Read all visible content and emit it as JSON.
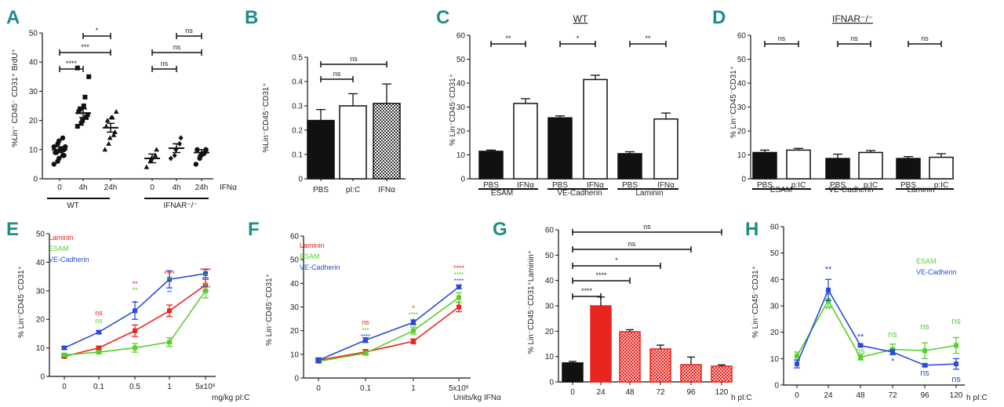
{
  "colors": {
    "label": "#1b8e86",
    "red": "#e8251f",
    "green": "#59cf2d",
    "blue": "#2a4bd7",
    "black": "#111111"
  },
  "panels": {
    "A": {
      "label": "A",
      "ylabel": "%Lin⁻ CD45⁻ CD31⁺ BrdU⁺",
      "yticks": [
        "0",
        "10",
        "20",
        "30",
        "40",
        "50"
      ],
      "xticks": [
        "0",
        "4h",
        "24h",
        "0",
        "4h",
        "24h"
      ],
      "xtitle": "IFNα",
      "groups": [
        "WT",
        "IFNAR⁻/⁻"
      ],
      "sig": [
        "*",
        "***",
        "****",
        "ns",
        "ns",
        "ns"
      ]
    },
    "B": {
      "label": "B",
      "ylabel": "%Lin⁻CD45⁻CD31⁺",
      "yticks": [
        "0",
        "0.1",
        "0.2",
        "0.3",
        "0.4",
        "0.5"
      ],
      "xticks": [
        "PBS",
        "pI:C",
        "IFNα"
      ],
      "sig": [
        "ns",
        "ns"
      ]
    },
    "C": {
      "label": "C",
      "title": "WT",
      "ylabel": "% Lin⁻CD45⁻CD31⁺",
      "yticks": [
        "0",
        "10",
        "20",
        "30",
        "40",
        "50",
        "60"
      ],
      "xticks": [
        "PBS",
        "IFNα",
        "PBS",
        "IFNα",
        "PBS",
        "IFNα"
      ],
      "groups": [
        "ESAM",
        "VE-Cadherin",
        "Laminin"
      ],
      "sig": [
        "**",
        "*",
        "**"
      ]
    },
    "D": {
      "label": "D",
      "title": "IFNAR⁻/⁻",
      "ylabel": "% Lin⁻CD45⁻CD31⁺",
      "yticks": [
        "0",
        "10",
        "20",
        "30",
        "40",
        "50",
        "60"
      ],
      "xticks": [
        "PBS",
        "p:IC",
        "PBS",
        "p:IC",
        "PBS",
        "p:IC"
      ],
      "groups": [
        "ESAM",
        "VE-Cadherin",
        "Laminin"
      ],
      "sig": [
        "ns",
        "ns",
        "ns"
      ]
    },
    "E": {
      "label": "E",
      "ylabel": "% Lin⁻CD45⁻CD31⁺",
      "yticks": [
        "0",
        "10",
        "20",
        "30",
        "40",
        "50"
      ],
      "xticks": [
        "0",
        "0.1",
        "0.5",
        "1",
        "5x10⁶"
      ],
      "xtitle": "mg/kg pI:C",
      "legend": [
        "Laminin",
        "ESAM",
        "VE-Cadherin"
      ],
      "sig_red": [
        "ns",
        "**",
        "****",
        "****"
      ],
      "sig_green": [
        "ns",
        "**",
        "**",
        "**"
      ],
      "sig_blue": [
        "**",
        "*",
        "**",
        "****"
      ]
    },
    "F": {
      "label": "F",
      "ylabel": "% Lin⁻CD45⁻CD31⁺",
      "yticks": [
        "0",
        "10",
        "20",
        "30",
        "40",
        "50",
        "60"
      ],
      "xticks": [
        "0",
        "0.1",
        "1",
        "5x10⁶"
      ],
      "xtitle": "Units/kg IFNα",
      "legend": [
        "Laminin",
        "ESAM",
        "VE-Cadherin"
      ],
      "sig_red": [
        "ns",
        "*",
        "****"
      ],
      "sig_green": [
        "***",
        "****",
        "****"
      ],
      "sig_blue": [
        "****",
        "*",
        "****"
      ]
    },
    "G": {
      "label": "G",
      "ylabel": "% Lin⁻CD45⁻CD31⁺Laminin⁺",
      "yticks": [
        "0",
        "10",
        "20",
        "30",
        "40",
        "50",
        "60"
      ],
      "xticks": [
        "0",
        "24",
        "48",
        "72",
        "96",
        "120"
      ],
      "xtitle": "h pI:C",
      "sig": [
        "ns",
        "ns",
        "*",
        "****",
        "****"
      ]
    },
    "H": {
      "label": "H",
      "ylabel": "% Lin⁻CD45⁻CD31⁺",
      "yticks": [
        "0",
        "10",
        "20",
        "30",
        "40",
        "50",
        "60"
      ],
      "xticks": [
        "0",
        "24",
        "48",
        "72",
        "96",
        "120"
      ],
      "xtitle": "h pI:C",
      "legend": [
        "ESAM",
        "VE-Cadherin"
      ],
      "sig_green": [
        "**",
        "ns",
        "ns",
        "ns",
        "ns"
      ],
      "sig_blue": [
        "**",
        "**",
        "*",
        "ns",
        "ns"
      ]
    }
  },
  "chart_data": [
    {
      "id": "A",
      "type": "scatter",
      "ylim": [
        0,
        50
      ],
      "ylabel": "%Lin⁻ CD45⁻ CD31⁺ BrdU⁺",
      "xlabel": "IFNα",
      "categories": [
        "WT 0",
        "WT 4h",
        "WT 24h",
        "IFNAR⁻/⁻ 0",
        "IFNAR⁻/⁻ 4h",
        "IFNAR⁻/⁻ 24h"
      ],
      "means": [
        10,
        22.5,
        17.5,
        7,
        10.5,
        9
      ],
      "sem": [
        1,
        1.5,
        1.5,
        1.5,
        1.5,
        1
      ],
      "points": [
        [
          5,
          6,
          7,
          8,
          8,
          9,
          9,
          10,
          10,
          11,
          11,
          12,
          13,
          14,
          10
        ],
        [
          18,
          19,
          20,
          21,
          22,
          23,
          24,
          25,
          28,
          35,
          38
        ],
        [
          10,
          12,
          14,
          15,
          16,
          18,
          20,
          21,
          21,
          23
        ],
        [
          4,
          6,
          7,
          8,
          10
        ],
        [
          7,
          8,
          10,
          12,
          14
        ],
        [
          5,
          7,
          8,
          9,
          10,
          10
        ]
      ]
    },
    {
      "id": "B",
      "type": "bar",
      "ylim": [
        0,
        0.5
      ],
      "ylabel": "%Lin⁻CD45⁻CD31⁺",
      "categories": [
        "PBS",
        "pI:C",
        "IFNα"
      ],
      "values": [
        0.24,
        0.3,
        0.31
      ],
      "errors": [
        0.045,
        0.05,
        0.08
      ]
    },
    {
      "id": "C",
      "type": "bar",
      "title": "WT",
      "ylim": [
        0,
        60
      ],
      "ylabel": "% Lin⁻CD45⁻CD31⁺",
      "groups": [
        "ESAM",
        "VE-Cadherin",
        "Laminin"
      ],
      "series": [
        {
          "name": "PBS",
          "values": [
            11.5,
            25.5,
            10.5
          ],
          "errors": [
            0.5,
            0.8,
            0.8
          ]
        },
        {
          "name": "IFNα",
          "values": [
            31.5,
            41.5,
            25
          ],
          "errors": [
            2,
            1.8,
            2.5
          ]
        }
      ]
    },
    {
      "id": "D",
      "type": "bar",
      "title": "IFNAR⁻/⁻",
      "ylim": [
        0,
        60
      ],
      "ylabel": "% Lin⁻CD45⁻CD31⁺",
      "groups": [
        "ESAM",
        "VE-Cadherin",
        "Laminin"
      ],
      "series": [
        {
          "name": "PBS",
          "values": [
            11,
            8.5,
            8.5
          ],
          "errors": [
            1,
            1.8,
            0.8
          ]
        },
        {
          "name": "p:IC",
          "values": [
            12,
            11,
            9
          ],
          "errors": [
            0.7,
            0.8,
            1.5
          ]
        }
      ]
    },
    {
      "id": "E",
      "type": "line",
      "ylim": [
        0,
        50
      ],
      "ylabel": "% Lin⁻CD45⁻CD31⁺",
      "xlabel": "mg/kg pI:C",
      "categories": [
        "0",
        "0.1",
        "0.5",
        "1",
        "5x10⁶"
      ],
      "series": [
        {
          "name": "Laminin",
          "values": [
            7,
            10,
            16,
            23,
            32
          ],
          "errors": [
            0.5,
            0.5,
            2,
            2,
            2
          ]
        },
        {
          "name": "ESAM",
          "values": [
            7.5,
            8.5,
            10,
            12,
            30
          ],
          "errors": [
            0.5,
            0.5,
            1.5,
            1.5,
            2.5
          ]
        },
        {
          "name": "VE-Cadherin",
          "values": [
            10,
            15.5,
            23,
            34,
            36
          ],
          "errors": [
            0.5,
            0.5,
            3,
            3,
            1.5
          ]
        }
      ]
    },
    {
      "id": "F",
      "type": "line",
      "ylim": [
        0,
        60
      ],
      "ylabel": "% Lin⁻CD45⁻CD31⁺",
      "xlabel": "Units/kg IFNα",
      "categories": [
        "0",
        "0.1",
        "1",
        "5x10⁶"
      ],
      "series": [
        {
          "name": "Laminin",
          "values": [
            7.5,
            11,
            15.5,
            30
          ],
          "errors": [
            0.5,
            1,
            1,
            2
          ]
        },
        {
          "name": "ESAM",
          "values": [
            7,
            10.5,
            20,
            34
          ],
          "errors": [
            0.5,
            0.8,
            1.5,
            2
          ]
        },
        {
          "name": "VE-Cadherin",
          "values": [
            7.5,
            16,
            23.5,
            38.5
          ],
          "errors": [
            1,
            1,
            1,
            0.8
          ]
        }
      ]
    },
    {
      "id": "G",
      "type": "bar",
      "ylim": [
        0,
        60
      ],
      "ylabel": "% Lin⁻CD45⁻CD31⁺Laminin⁺",
      "xlabel": "h pI:C",
      "categories": [
        "0",
        "24",
        "48",
        "72",
        "96",
        "120"
      ],
      "values": [
        7.5,
        30,
        19.8,
        13,
        6.8,
        6.2
      ],
      "errors": [
        0.6,
        3.5,
        0.8,
        1.5,
        3,
        0.5
      ]
    },
    {
      "id": "H",
      "type": "line",
      "ylim": [
        0,
        60
      ],
      "ylabel": "% Lin⁻CD45⁻CD31⁺",
      "xlabel": "h pI:C",
      "categories": [
        "0",
        "24",
        "48",
        "72",
        "96",
        "120"
      ],
      "series": [
        {
          "name": "ESAM",
          "values": [
            11,
            32,
            10.5,
            13.5,
            13,
            15
          ],
          "errors": [
            1.5,
            2.5,
            1,
            2,
            3,
            3
          ]
        },
        {
          "name": "VE-Cadherin",
          "values": [
            8,
            36,
            15,
            12.5,
            7.5,
            8
          ],
          "errors": [
            1.5,
            4,
            0.5,
            1,
            0.5,
            2
          ]
        }
      ]
    }
  ]
}
